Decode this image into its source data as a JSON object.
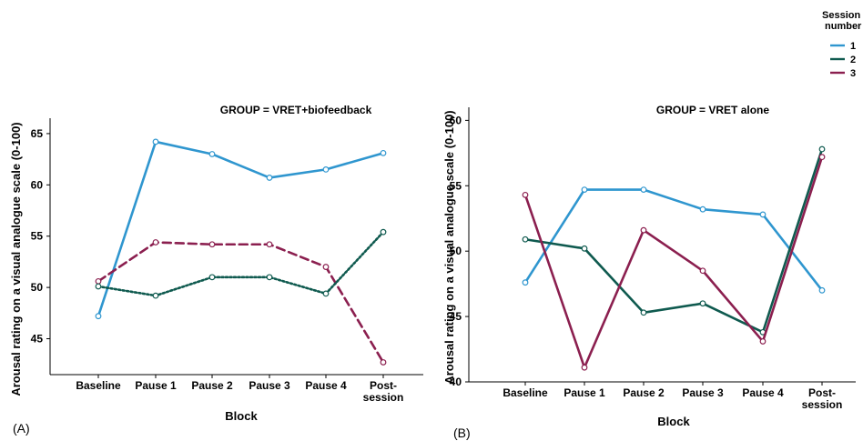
{
  "legend": {
    "title_line1": "Session",
    "title_line2": "number",
    "entries": [
      {
        "label": "1",
        "color": "#2F96CF"
      },
      {
        "label": "2",
        "color": "#0F5A4F"
      },
      {
        "label": "3",
        "color": "#8B1F4F"
      }
    ]
  },
  "chart_data": [
    {
      "type": "line",
      "panel_label": "(A)",
      "title": "GROUP = VRET+biofeedback",
      "xlabel": "Block",
      "ylabel": "Arousal rating on a visual analogue scale (0-100)",
      "categories": [
        "Baseline",
        "Pause 1",
        "Pause 2",
        "Pause 3",
        "Pause 4",
        "Post-|session"
      ],
      "ylim": [
        41.5,
        66.5
      ],
      "yticks": [
        45,
        50,
        55,
        60,
        65
      ],
      "grid": false,
      "series": [
        {
          "name": "1",
          "color": "#2F96CF",
          "style": "solid",
          "values": [
            47.2,
            64.2,
            63.0,
            60.7,
            61.5,
            63.1
          ]
        },
        {
          "name": "3",
          "color": "#8B1F4F",
          "style": "dashed",
          "values": [
            50.6,
            54.4,
            54.2,
            54.2,
            52.0,
            42.7
          ]
        },
        {
          "name": "2",
          "color": "#0F5A4F",
          "style": "dotted",
          "values": [
            50.1,
            49.2,
            51.0,
            51.0,
            49.4,
            55.4
          ]
        }
      ]
    },
    {
      "type": "line",
      "panel_label": "(B)",
      "title": "GROUP = VRET alone",
      "xlabel": "Block",
      "ylabel": "Arousal rating on a visual analogue scale (0-100)",
      "categories": [
        "Baseline",
        "Pause 1",
        "Pause 2",
        "Pause 3",
        "Pause 4",
        "Post-|session"
      ],
      "ylim": [
        40,
        61
      ],
      "yticks": [
        40,
        45,
        50,
        55,
        60
      ],
      "grid": false,
      "series": [
        {
          "name": "1",
          "color": "#2F96CF",
          "style": "solid",
          "values": [
            47.6,
            54.7,
            54.7,
            53.2,
            52.8,
            47.0
          ]
        },
        {
          "name": "2",
          "color": "#0F5A4F",
          "style": "solid",
          "values": [
            50.9,
            50.2,
            45.3,
            46.0,
            43.8,
            57.8
          ]
        },
        {
          "name": "3",
          "color": "#8B1F4F",
          "style": "solid",
          "values": [
            54.3,
            41.1,
            51.6,
            48.5,
            43.1,
            57.2
          ]
        }
      ]
    }
  ]
}
